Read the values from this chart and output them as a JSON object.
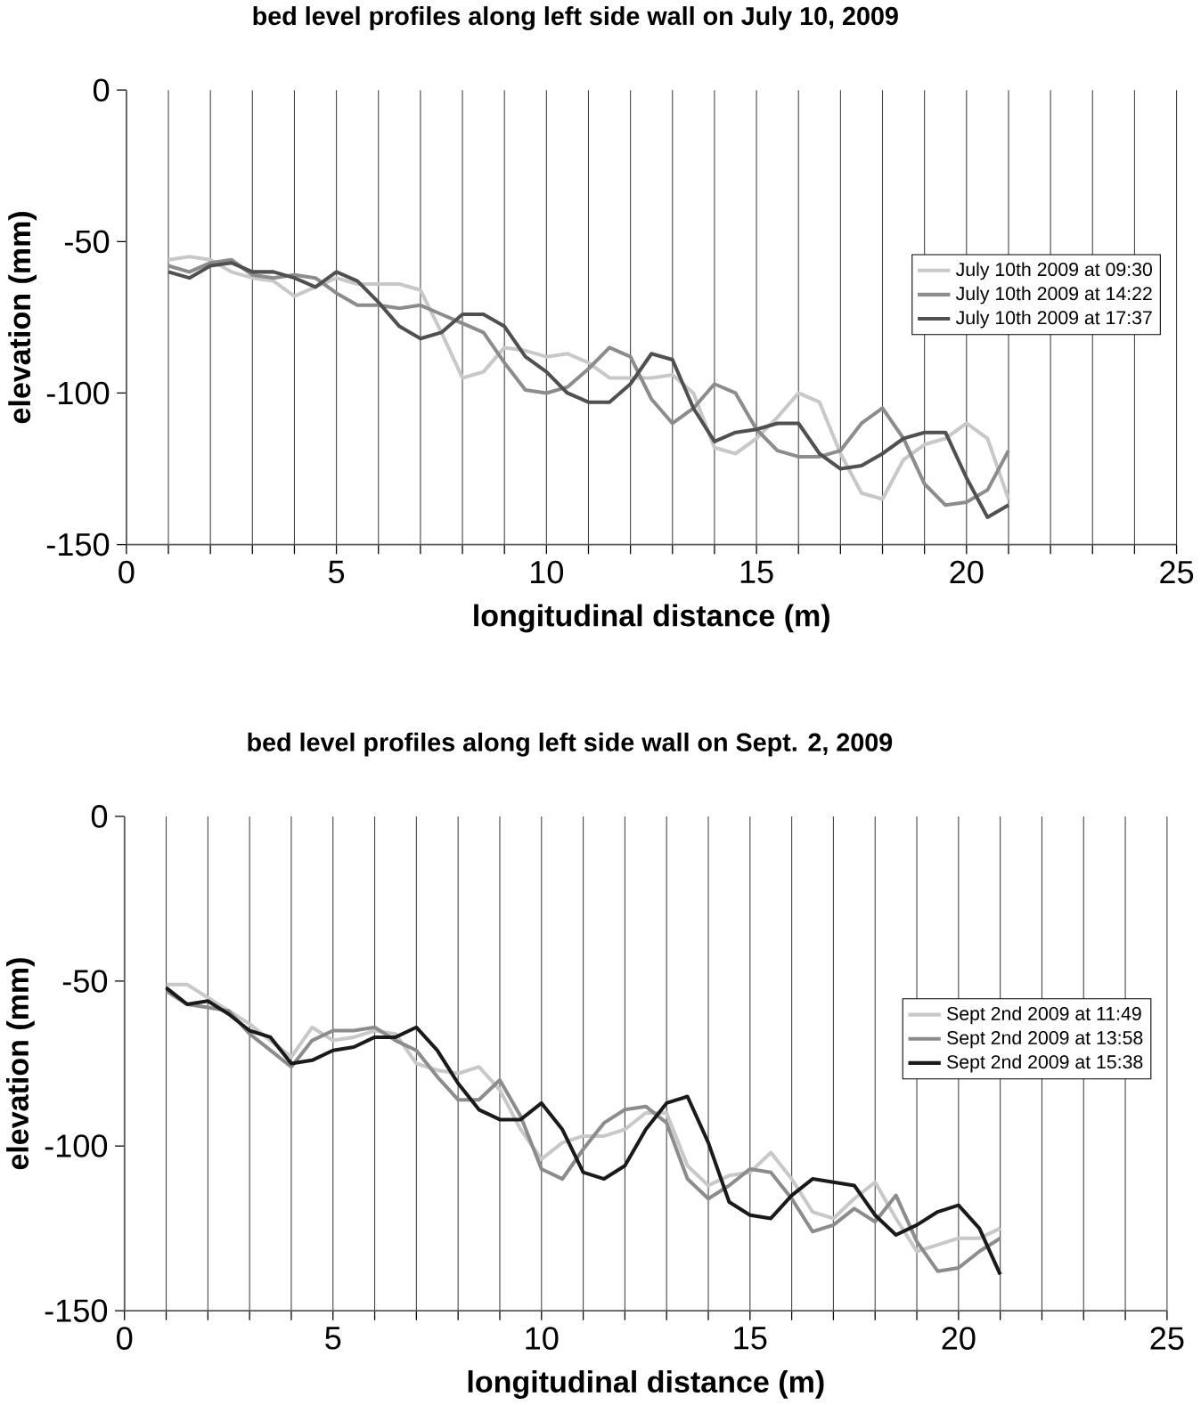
{
  "chart_data": [
    {
      "type": "line",
      "title": "bed level profiles along left side wall on July 10, 2009",
      "xlabel": "longitudinal distance (m)",
      "ylabel": "elevation (mm)",
      "xlim": [
        0,
        25
      ],
      "ylim": [
        -150,
        0
      ],
      "xticks": [
        0,
        {
          "value": 1,
          "label": null
        },
        {
          "value": 2,
          "label": null
        },
        {
          "value": 3,
          "label": null
        },
        {
          "value": 4,
          "label": null
        },
        5,
        {
          "value": 6,
          "label": null
        },
        {
          "value": 7,
          "label": null
        },
        {
          "value": 8,
          "label": null
        },
        {
          "value": 9,
          "label": null
        },
        10,
        {
          "value": 11,
          "label": null
        },
        {
          "value": 12,
          "label": null
        },
        {
          "value": 13,
          "label": null
        },
        {
          "value": 14,
          "label": null
        },
        15,
        {
          "value": 16,
          "label": null
        },
        {
          "value": 17,
          "label": null
        },
        {
          "value": 18,
          "label": null
        },
        {
          "value": 19,
          "label": null
        },
        20,
        {
          "value": 21,
          "label": null
        },
        {
          "value": 22,
          "label": null
        },
        {
          "value": 23,
          "label": null
        },
        {
          "value": 24,
          "label": null
        },
        25
      ],
      "yticks": [
        -150,
        -100,
        -50,
        0
      ],
      "grid": "x",
      "legend": "right",
      "x": [
        1,
        1.5,
        2,
        2.5,
        3,
        3.5,
        4,
        4.5,
        5,
        5.5,
        6,
        6.5,
        7,
        7.5,
        8,
        8.5,
        9,
        9.5,
        10,
        10.5,
        11,
        11.5,
        12,
        12.5,
        13,
        13.5,
        14,
        14.5,
        15,
        15.5,
        16,
        16.5,
        17,
        17.5,
        18,
        18.5,
        19,
        19.5,
        20,
        20.5,
        21
      ],
      "series": [
        {
          "name": "July 10th 2009 at 09:30",
          "color": "#c8c8c8",
          "values": [
            -56,
            -55,
            -56,
            -60,
            -62,
            -63,
            -68,
            -65,
            -62,
            -64,
            -64,
            -64,
            -66,
            -80,
            -95,
            -93,
            -85,
            -86,
            -88,
            -87,
            -90,
            -95,
            -95,
            -95,
            -94,
            -100,
            -118,
            -120,
            -115,
            -108,
            -100,
            -103,
            -120,
            -133,
            -135,
            -122,
            -117,
            -115,
            -110,
            -115,
            -135
          ]
        },
        {
          "name": "July 10th 2009 at 14:22",
          "color": "#8c8c8c",
          "values": [
            -58,
            -60,
            -57,
            -56,
            -61,
            -62,
            -61,
            -62,
            -67,
            -71,
            -71,
            -72,
            -71,
            -74,
            -77,
            -80,
            -90,
            -99,
            -100,
            -98,
            -92,
            -85,
            -88,
            -102,
            -110,
            -105,
            -97,
            -100,
            -112,
            -119,
            -121,
            -121,
            -119,
            -110,
            -105,
            -115,
            -130,
            -137,
            -136,
            -132,
            -119
          ]
        },
        {
          "name": "July 10th 2009 at 17:37",
          "color": "#505050",
          "values": [
            -60,
            -62,
            -58,
            -57,
            -60,
            -60,
            -62,
            -65,
            -60,
            -63,
            -70,
            -78,
            -82,
            -80,
            -74,
            -74,
            -78,
            -88,
            -93,
            -100,
            -103,
            -103,
            -97,
            -87,
            -89,
            -105,
            -116,
            -113,
            -112,
            -110,
            -110,
            -120,
            -125,
            -124,
            -120,
            -115,
            -113,
            -113,
            -128,
            -141,
            -137
          ]
        }
      ]
    },
    {
      "type": "line",
      "title": "bed level profiles along left side wall on Sept. 2, 2009",
      "xlabel": "longitudinal distance (m)",
      "ylabel": "elevation (mm)",
      "xlim": [
        0,
        25
      ],
      "ylim": [
        -150,
        0
      ],
      "xticks": [
        0,
        {
          "value": 1,
          "label": null
        },
        {
          "value": 2,
          "label": null
        },
        {
          "value": 3,
          "label": null
        },
        {
          "value": 4,
          "label": null
        },
        5,
        {
          "value": 6,
          "label": null
        },
        {
          "value": 7,
          "label": null
        },
        {
          "value": 8,
          "label": null
        },
        {
          "value": 9,
          "label": null
        },
        10,
        {
          "value": 11,
          "label": null
        },
        {
          "value": 12,
          "label": null
        },
        {
          "value": 13,
          "label": null
        },
        {
          "value": 14,
          "label": null
        },
        15,
        {
          "value": 16,
          "label": null
        },
        {
          "value": 17,
          "label": null
        },
        {
          "value": 18,
          "label": null
        },
        {
          "value": 19,
          "label": null
        },
        20,
        {
          "value": 21,
          "label": null
        },
        {
          "value": 22,
          "label": null
        },
        {
          "value": 23,
          "label": null
        },
        {
          "value": 24,
          "label": null
        },
        25
      ],
      "yticks": [
        -150,
        -100,
        -50,
        0
      ],
      "grid": "x",
      "legend": "right",
      "x": [
        1,
        1.5,
        2,
        2.5,
        3,
        3.5,
        4,
        4.5,
        5,
        5.5,
        6,
        6.5,
        7,
        7.5,
        8,
        8.5,
        9,
        9.5,
        10,
        10.5,
        11,
        11.5,
        12,
        12.5,
        13,
        13.5,
        14,
        14.5,
        15,
        15.5,
        16,
        16.5,
        17,
        17.5,
        18,
        18.5,
        19,
        19.5,
        20,
        20.5,
        21
      ],
      "series": [
        {
          "name": "Sept 2nd 2009 at 11:49",
          "color": "#c8c8c8",
          "values": [
            -51,
            -51,
            -55,
            -59,
            -63,
            -68,
            -73,
            -64,
            -68,
            -67,
            -65,
            -66,
            -75,
            -77,
            -78,
            -76,
            -83,
            -95,
            -104,
            -99,
            -97,
            -97,
            -95,
            -90,
            -90,
            -106,
            -112,
            -109,
            -108,
            -102,
            -110,
            -120,
            -122,
            -116,
            -111,
            -122,
            -132,
            -130,
            -128,
            -128,
            -125
          ]
        },
        {
          "name": "Sept 2nd 2009 at 13:58",
          "color": "#8c8c8c",
          "values": [
            -53,
            -57,
            -58,
            -59,
            -66,
            -71,
            -76,
            -68,
            -65,
            -65,
            -64,
            -68,
            -71,
            -79,
            -86,
            -86,
            -80,
            -91,
            -107,
            -110,
            -101,
            -93,
            -89,
            -88,
            -93,
            -110,
            -116,
            -112,
            -107,
            -108,
            -116,
            -126,
            -124,
            -119,
            -123,
            -115,
            -129,
            -138,
            -137,
            -132,
            -128
          ]
        },
        {
          "name": "Sept 2nd 2009 at 15:38",
          "color": "#1a1a1a",
          "values": [
            -52,
            -57,
            -56,
            -60,
            -65,
            -67,
            -75,
            -74,
            -71,
            -70,
            -67,
            -67,
            -64,
            -71,
            -81,
            -89,
            -92,
            -92,
            -87,
            -95,
            -108,
            -110,
            -106,
            -95,
            -87,
            -85,
            -99,
            -117,
            -121,
            -122,
            -115,
            -110,
            -111,
            -112,
            -121,
            -127,
            -124,
            -120,
            -118,
            -125,
            -139
          ]
        }
      ]
    }
  ]
}
